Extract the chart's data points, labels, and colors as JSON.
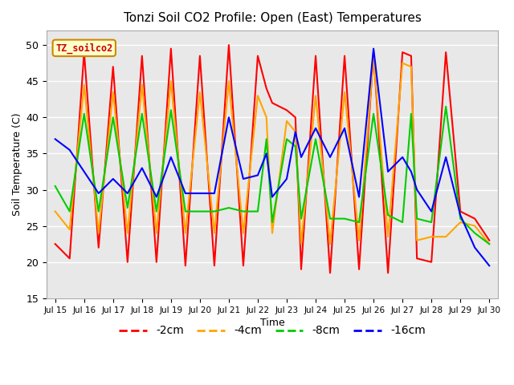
{
  "title": "Tonzi Soil CO2 Profile: Open (East) Temperatures",
  "xlabel": "Time",
  "ylabel": "Soil Temperature (C)",
  "ylim": [
    15,
    52
  ],
  "yticks": [
    15,
    20,
    25,
    30,
    35,
    40,
    45,
    50
  ],
  "legend_label": "TZ_soilco2",
  "series": {
    "-2cm": {
      "color": "#ff0000",
      "x": [
        0.0,
        0.5,
        1.0,
        1.5,
        2.0,
        2.5,
        3.0,
        3.5,
        4.0,
        4.5,
        5.0,
        5.5,
        6.0,
        6.5,
        7.0,
        7.3,
        7.5,
        8.0,
        8.3,
        8.5,
        9.0,
        9.5,
        10.0,
        10.5,
        11.0,
        11.5,
        12.0,
        12.3,
        12.5,
        13.0,
        13.5,
        14.0,
        14.5,
        15.0
      ],
      "data": [
        22.5,
        20.5,
        49.0,
        22.0,
        47.0,
        20.0,
        48.5,
        20.0,
        49.5,
        19.5,
        48.5,
        19.5,
        50.0,
        19.5,
        48.5,
        44.0,
        42.0,
        41.0,
        40.0,
        19.0,
        48.5,
        18.5,
        48.5,
        19.0,
        49.0,
        18.5,
        49.0,
        48.5,
        20.5,
        20.0,
        49.0,
        27.0,
        26.0,
        23.0
      ]
    },
    "-4cm": {
      "color": "#ffa500",
      "x": [
        0.0,
        0.5,
        1.0,
        1.5,
        2.0,
        2.5,
        3.0,
        3.5,
        4.0,
        4.5,
        5.0,
        5.5,
        6.0,
        6.5,
        7.0,
        7.3,
        7.5,
        8.0,
        8.3,
        8.5,
        9.0,
        9.5,
        10.0,
        10.5,
        11.0,
        11.5,
        12.0,
        12.3,
        12.5,
        13.0,
        13.5,
        14.0,
        14.5,
        15.0
      ],
      "data": [
        27.0,
        24.5,
        44.5,
        24.0,
        43.5,
        24.0,
        44.5,
        24.0,
        45.0,
        24.0,
        43.5,
        24.0,
        45.0,
        24.0,
        43.0,
        40.0,
        24.0,
        39.5,
        38.0,
        22.5,
        43.0,
        22.5,
        43.5,
        23.0,
        48.5,
        23.5,
        47.5,
        47.0,
        23.0,
        23.5,
        23.5,
        25.5,
        25.0,
        22.5
      ]
    },
    "-8cm": {
      "color": "#00cc00",
      "x": [
        0.0,
        0.5,
        1.0,
        1.5,
        2.0,
        2.5,
        3.0,
        3.5,
        4.0,
        4.5,
        5.0,
        5.5,
        6.0,
        6.5,
        7.0,
        7.3,
        7.5,
        8.0,
        8.3,
        8.5,
        9.0,
        9.5,
        10.0,
        10.5,
        11.0,
        11.5,
        12.0,
        12.3,
        12.5,
        13.0,
        13.5,
        14.0,
        14.5,
        15.0
      ],
      "data": [
        30.5,
        27.0,
        40.5,
        27.0,
        40.0,
        27.5,
        40.5,
        27.0,
        41.0,
        27.0,
        27.0,
        27.0,
        27.5,
        27.0,
        27.0,
        37.0,
        25.5,
        37.0,
        36.0,
        26.0,
        37.0,
        26.0,
        26.0,
        25.5,
        40.5,
        26.5,
        25.5,
        40.5,
        26.0,
        25.5,
        41.5,
        26.0,
        24.0,
        22.5
      ]
    },
    "-16cm": {
      "color": "#0000ff",
      "x": [
        0.0,
        0.5,
        1.0,
        1.5,
        2.0,
        2.5,
        3.0,
        3.5,
        4.0,
        4.5,
        5.0,
        5.5,
        6.0,
        6.5,
        7.0,
        7.3,
        7.5,
        8.0,
        8.3,
        8.5,
        9.0,
        9.5,
        10.0,
        10.5,
        11.0,
        11.5,
        12.0,
        12.3,
        12.5,
        13.0,
        13.5,
        14.0,
        14.5,
        15.0
      ],
      "data": [
        37.0,
        35.5,
        32.5,
        29.5,
        31.5,
        29.5,
        33.0,
        29.0,
        34.5,
        29.5,
        29.5,
        29.5,
        40.0,
        31.5,
        32.0,
        35.0,
        29.0,
        31.5,
        38.0,
        34.5,
        38.5,
        34.5,
        38.5,
        29.0,
        49.5,
        32.5,
        34.5,
        32.5,
        30.0,
        27.0,
        34.5,
        26.5,
        22.0,
        19.5
      ]
    }
  },
  "x_labels": [
    "Jul 15",
    "Jul 16",
    "Jul 17",
    "Jul 18",
    "Jul 19",
    "Jul 20",
    "Jul 21",
    "Jul 22",
    "Jul 23",
    "Jul 24",
    "Jul 25",
    "Jul 26",
    "Jul 27",
    "Jul 28",
    "Jul 29",
    "Jul 30"
  ],
  "x_tick_pos": [
    0,
    1,
    2,
    3,
    4,
    5,
    6,
    7,
    8,
    9,
    10,
    11,
    12,
    13,
    14,
    15
  ],
  "legend_entries": [
    "-2cm",
    "-4cm",
    "-8cm",
    "-16cm"
  ],
  "legend_colors": [
    "#ff0000",
    "#ffa500",
    "#00cc00",
    "#0000ff"
  ]
}
